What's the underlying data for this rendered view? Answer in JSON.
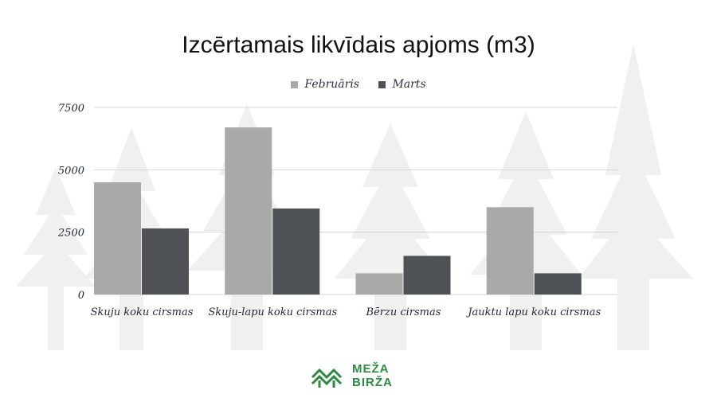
{
  "chart_data": {
    "type": "bar",
    "title": "Izcērtamais likvīdais apjoms (m3)",
    "categories": [
      "Skuju koku cirsmas",
      "Skuju-lapu koku cirsmas",
      "Bērzu cirsmas",
      "Jauktu lapu koku cirsmas"
    ],
    "series": [
      {
        "name": "Februāris",
        "values": [
          4500,
          6700,
          850,
          3500
        ],
        "color": "#a9a9a9"
      },
      {
        "name": "Marts",
        "values": [
          2650,
          3450,
          1550,
          850
        ],
        "color": "#4e5257"
      }
    ],
    "yticks": [
      0,
      2500,
      5000,
      7500
    ],
    "ylim": [
      0,
      7500
    ],
    "grid": true,
    "legend_position": "top-center"
  },
  "logo": {
    "line1": "MEŽA",
    "line2": "BIRŽA",
    "color": "#2e8a43"
  }
}
